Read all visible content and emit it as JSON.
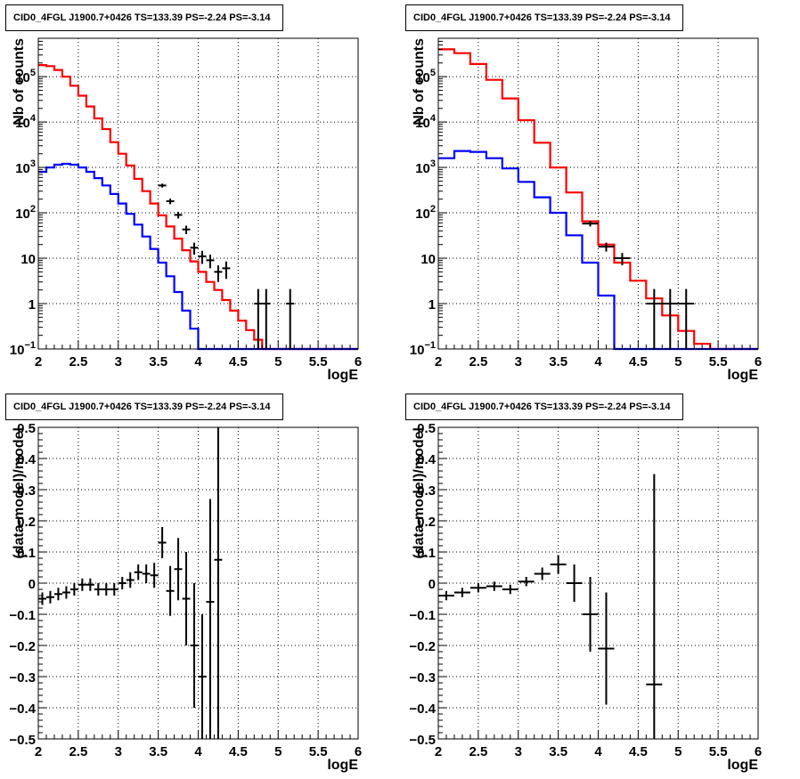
{
  "chart_data": [
    {
      "type": "line",
      "title": "CID0_4FGL J1900.7+0426 TS=133.39 PS=-2.24 PS=-3.14",
      "xlabel": "logE",
      "ylabel": "Nb of counts",
      "xlim": [
        2,
        6
      ],
      "ylim": [
        0.1,
        700000
      ],
      "yscale": "log",
      "grid": true,
      "xticks": [
        "2",
        "2.5",
        "3",
        "3.5",
        "4",
        "4.5",
        "5",
        "5.5",
        "6"
      ],
      "yticks": [
        {
          "v": 0.1,
          "label": "10",
          "sup": "−1"
        },
        {
          "v": 1,
          "label": "1",
          "sup": ""
        },
        {
          "v": 10,
          "label": "10",
          "sup": ""
        },
        {
          "v": 100,
          "label": "10",
          "sup": "2"
        },
        {
          "v": 1000,
          "label": "10",
          "sup": "3"
        },
        {
          "v": 10000,
          "label": "10",
          "sup": "4"
        },
        {
          "v": 100000,
          "label": "10",
          "sup": "5"
        }
      ],
      "series": [
        {
          "color": "#ff0000",
          "steps": {
            "edges": [
              2.0,
              2.1,
              2.2,
              2.3,
              2.4,
              2.5,
              2.6,
              2.7,
              2.8,
              2.9,
              3.0,
              3.1,
              3.2,
              3.3,
              3.4,
              3.5,
              3.6,
              3.7,
              3.8,
              3.9,
              4.0,
              4.1,
              4.2,
              4.3,
              4.4,
              4.5,
              4.6,
              4.7,
              4.8,
              4.9,
              5.0,
              5.1,
              5.2,
              5.3,
              5.4,
              5.5,
              5.6,
              5.7,
              5.8,
              5.9,
              6.0
            ],
            "values": [
              180000,
              170000,
              140000,
              100000,
              63000,
              38000,
              22000,
              12000,
              7000,
              3600,
              2000,
              1100,
              560,
              300,
              160,
              88,
              50,
              27,
              15,
              8.5,
              5,
              3,
              2,
              1.2,
              0.7,
              0.42,
              0.26,
              0.16,
              0.1,
              0.1,
              0.1,
              0.1,
              0.1,
              0.1,
              0.1,
              0.1,
              0.1,
              0.1,
              0.1,
              0.1
            ]
          }
        },
        {
          "color": "#0000ff",
          "steps": {
            "edges": [
              2.0,
              2.1,
              2.2,
              2.3,
              2.4,
              2.5,
              2.6,
              2.7,
              2.8,
              2.9,
              3.0,
              3.1,
              3.2,
              3.3,
              3.4,
              3.5,
              3.6,
              3.7,
              3.8,
              3.9,
              4.0,
              4.1,
              4.2,
              4.3,
              4.4,
              4.5,
              4.6,
              4.7,
              4.8,
              4.9,
              5.0,
              5.1,
              5.2,
              5.3,
              5.4,
              5.5,
              5.6,
              5.7,
              5.8,
              5.9,
              6.0
            ],
            "values": [
              800,
              1000,
              1150,
              1200,
              1150,
              1000,
              800,
              580,
              400,
              260,
              160,
              95,
              55,
              30,
              16,
              8,
              4,
              1.8,
              0.7,
              0.28,
              0.1,
              0.1,
              0.1,
              0.1,
              0.1,
              0.1,
              0.1,
              0.1,
              0.1,
              0.1,
              0.1,
              0.1,
              0.1,
              0.1,
              0.1,
              0.1,
              0.1,
              0.1,
              0.1,
              0.1
            ]
          }
        }
      ],
      "points": [
        {
          "x": 3.55,
          "y": 400,
          "xerr": 0.05,
          "ylo": 360,
          "yhi": 440
        },
        {
          "x": 3.65,
          "y": 180,
          "xerr": 0.05,
          "ylo": 155,
          "yhi": 205
        },
        {
          "x": 3.75,
          "y": 90,
          "xerr": 0.05,
          "ylo": 75,
          "yhi": 105
        },
        {
          "x": 3.85,
          "y": 43,
          "xerr": 0.05,
          "ylo": 34,
          "yhi": 52
        },
        {
          "x": 3.95,
          "y": 17,
          "xerr": 0.05,
          "ylo": 12,
          "yhi": 22
        },
        {
          "x": 4.05,
          "y": 11,
          "xerr": 0.05,
          "ylo": 7.5,
          "yhi": 14.5
        },
        {
          "x": 4.15,
          "y": 9,
          "xerr": 0.05,
          "ylo": 6,
          "yhi": 12
        },
        {
          "x": 4.25,
          "y": 5,
          "xerr": 0.05,
          "ylo": 3,
          "yhi": 7
        },
        {
          "x": 4.35,
          "y": 6,
          "xerr": 0.05,
          "ylo": 3.5,
          "yhi": 8.5
        },
        {
          "x": 4.75,
          "y": 1,
          "xerr": 0.05,
          "ylo": 0.1,
          "yhi": 2.1
        },
        {
          "x": 4.85,
          "y": 1,
          "xerr": 0.05,
          "ylo": 0.1,
          "yhi": 2.1
        },
        {
          "x": 5.15,
          "y": 1,
          "xerr": 0.05,
          "ylo": 0.1,
          "yhi": 2.1
        }
      ]
    },
    {
      "type": "line",
      "title": "CID0_4FGL J1900.7+0426 TS=133.39 PS=-2.24 PS=-3.14",
      "xlabel": "logE",
      "ylabel": "Nb of counts",
      "xlim": [
        2,
        6
      ],
      "ylim": [
        0.1,
        700000
      ],
      "yscale": "log",
      "grid": true,
      "xticks": [
        "2",
        "2.5",
        "3",
        "3.5",
        "4",
        "4.5",
        "5",
        "5.5",
        "6"
      ],
      "yticks": [
        {
          "v": 0.1,
          "label": "10",
          "sup": "−1"
        },
        {
          "v": 1,
          "label": "1",
          "sup": ""
        },
        {
          "v": 10,
          "label": "10",
          "sup": ""
        },
        {
          "v": 100,
          "label": "10",
          "sup": "2"
        },
        {
          "v": 1000,
          "label": "10",
          "sup": "3"
        },
        {
          "v": 10000,
          "label": "10",
          "sup": "4"
        },
        {
          "v": 100000,
          "label": "10",
          "sup": "5"
        }
      ],
      "series": [
        {
          "color": "#ff0000",
          "steps": {
            "edges": [
              2.0,
              2.2,
              2.4,
              2.6,
              2.8,
              3.0,
              3.2,
              3.4,
              3.6,
              3.8,
              4.0,
              4.2,
              4.4,
              4.6,
              4.8,
              5.0,
              5.2,
              5.4,
              5.6,
              5.8,
              6.0
            ],
            "values": [
              400000,
              330000,
              190000,
              85000,
              33000,
              11000,
              3500,
              1000,
              280,
              65,
              20,
              8,
              3.2,
              1.3,
              0.55,
              0.25,
              0.13,
              0.1,
              0.1,
              0.1
            ]
          }
        },
        {
          "color": "#0000ff",
          "steps": {
            "edges": [
              2.0,
              2.2,
              2.4,
              2.6,
              2.8,
              3.0,
              3.2,
              3.4,
              3.6,
              3.8,
              4.0,
              4.2,
              4.4,
              4.6,
              4.8,
              5.0,
              5.2,
              5.4,
              5.6,
              5.8,
              6.0
            ],
            "values": [
              1600,
              2300,
              2200,
              1600,
              950,
              480,
              220,
              100,
              32,
              8,
              1.5,
              0.1,
              0.1,
              0.1,
              0.1,
              0.1,
              0.1,
              0.1,
              0.1,
              0.1
            ]
          }
        }
      ],
      "points": [
        {
          "x": 3.9,
          "y": 58,
          "xerr": 0.1,
          "ylo": 50,
          "yhi": 66
        },
        {
          "x": 4.1,
          "y": 18,
          "xerr": 0.1,
          "ylo": 14,
          "yhi": 22
        },
        {
          "x": 4.3,
          "y": 10,
          "xerr": 0.1,
          "ylo": 7,
          "yhi": 13
        },
        {
          "x": 4.7,
          "y": 1,
          "xerr": 0.1,
          "ylo": 0.1,
          "yhi": 2.1
        },
        {
          "x": 4.9,
          "y": 1,
          "xerr": 0.1,
          "ylo": 0.1,
          "yhi": 2.1
        },
        {
          "x": 5.1,
          "y": 1,
          "xerr": 0.1,
          "ylo": 0.1,
          "yhi": 2.1
        }
      ]
    },
    {
      "type": "scatter",
      "title": "CID0_4FGL J1900.7+0426 TS=133.39 PS=-2.24 PS=-3.14",
      "xlabel": "logE",
      "ylabel": "(data-model)/model",
      "xlim": [
        2,
        6
      ],
      "ylim": [
        -0.5,
        0.5
      ],
      "yscale": "linear",
      "grid": true,
      "xticks": [
        "2",
        "2.5",
        "3",
        "3.5",
        "4",
        "4.5",
        "5",
        "5.5",
        "6"
      ],
      "yticks": [
        {
          "v": -0.5,
          "label": "−0.5"
        },
        {
          "v": -0.4,
          "label": "−0.4"
        },
        {
          "v": -0.3,
          "label": "−0.3"
        },
        {
          "v": -0.2,
          "label": "−0.2"
        },
        {
          "v": -0.1,
          "label": "−0.1"
        },
        {
          "v": 0,
          "label": "0"
        },
        {
          "v": 0.1,
          "label": "0.1"
        },
        {
          "v": 0.2,
          "label": "0.2"
        },
        {
          "v": 0.3,
          "label": "0.3"
        },
        {
          "v": 0.4,
          "label": "0.4"
        },
        {
          "v": 0.5,
          "label": "0.5"
        }
      ],
      "points": [
        {
          "x": 2.05,
          "y": -0.05,
          "xerr": 0.05,
          "ylo": -0.07,
          "yhi": -0.03
        },
        {
          "x": 2.15,
          "y": -0.045,
          "xerr": 0.05,
          "ylo": -0.065,
          "yhi": -0.025
        },
        {
          "x": 2.25,
          "y": -0.035,
          "xerr": 0.05,
          "ylo": -0.055,
          "yhi": -0.015
        },
        {
          "x": 2.35,
          "y": -0.03,
          "xerr": 0.05,
          "ylo": -0.05,
          "yhi": -0.01
        },
        {
          "x": 2.45,
          "y": -0.02,
          "xerr": 0.05,
          "ylo": -0.04,
          "yhi": 0.0
        },
        {
          "x": 2.55,
          "y": -0.005,
          "xerr": 0.05,
          "ylo": -0.025,
          "yhi": 0.015
        },
        {
          "x": 2.65,
          "y": -0.005,
          "xerr": 0.05,
          "ylo": -0.025,
          "yhi": 0.015
        },
        {
          "x": 2.75,
          "y": -0.02,
          "xerr": 0.05,
          "ylo": -0.04,
          "yhi": 0.0
        },
        {
          "x": 2.85,
          "y": -0.02,
          "xerr": 0.05,
          "ylo": -0.04,
          "yhi": 0.0
        },
        {
          "x": 2.95,
          "y": -0.02,
          "xerr": 0.05,
          "ylo": -0.04,
          "yhi": 0.0
        },
        {
          "x": 3.05,
          "y": 0.0,
          "xerr": 0.05,
          "ylo": -0.02,
          "yhi": 0.02
        },
        {
          "x": 3.15,
          "y": 0.01,
          "xerr": 0.05,
          "ylo": -0.015,
          "yhi": 0.035
        },
        {
          "x": 3.25,
          "y": 0.035,
          "xerr": 0.05,
          "ylo": 0.01,
          "yhi": 0.06
        },
        {
          "x": 3.35,
          "y": 0.03,
          "xerr": 0.05,
          "ylo": 0.0,
          "yhi": 0.06
        },
        {
          "x": 3.45,
          "y": 0.025,
          "xerr": 0.05,
          "ylo": -0.015,
          "yhi": 0.065
        },
        {
          "x": 3.55,
          "y": 0.13,
          "xerr": 0.05,
          "ylo": 0.08,
          "yhi": 0.18
        },
        {
          "x": 3.65,
          "y": -0.025,
          "xerr": 0.05,
          "ylo": -0.105,
          "yhi": 0.055
        },
        {
          "x": 3.75,
          "y": 0.045,
          "xerr": 0.05,
          "ylo": -0.055,
          "yhi": 0.145
        },
        {
          "x": 3.85,
          "y": -0.05,
          "xerr": 0.05,
          "ylo": -0.2,
          "yhi": 0.1
        },
        {
          "x": 3.95,
          "y": -0.2,
          "xerr": 0.05,
          "ylo": -0.4,
          "yhi": 0.0
        },
        {
          "x": 4.05,
          "y": -0.3,
          "xerr": 0.05,
          "ylo": -0.5,
          "yhi": -0.1
        },
        {
          "x": 4.15,
          "y": -0.06,
          "xerr": 0.05,
          "ylo": -0.5,
          "yhi": 0.27
        },
        {
          "x": 4.25,
          "y": 0.075,
          "xerr": 0.05,
          "ylo": -0.5,
          "yhi": 0.5
        }
      ]
    },
    {
      "type": "scatter",
      "title": "CID0_4FGL J1900.7+0426 TS=133.39 PS=-2.24 PS=-3.14",
      "xlabel": "logE",
      "ylabel": "(data-model)/model",
      "xlim": [
        2,
        6
      ],
      "ylim": [
        -0.5,
        0.5
      ],
      "yscale": "linear",
      "grid": true,
      "xticks": [
        "2",
        "2.5",
        "3",
        "3.5",
        "4",
        "4.5",
        "5",
        "5.5",
        "6"
      ],
      "yticks": [
        {
          "v": -0.5,
          "label": "−0.5"
        },
        {
          "v": -0.4,
          "label": "−0.4"
        },
        {
          "v": -0.3,
          "label": "−0.3"
        },
        {
          "v": -0.2,
          "label": "−0.2"
        },
        {
          "v": -0.1,
          "label": "−0.1"
        },
        {
          "v": 0,
          "label": "0"
        },
        {
          "v": 0.1,
          "label": "0.1"
        },
        {
          "v": 0.2,
          "label": "0.2"
        },
        {
          "v": 0.3,
          "label": "0.3"
        },
        {
          "v": 0.4,
          "label": "0.4"
        },
        {
          "v": 0.5,
          "label": "0.5"
        }
      ],
      "points": [
        {
          "x": 2.1,
          "y": -0.04,
          "xerr": 0.1,
          "ylo": -0.055,
          "yhi": -0.025
        },
        {
          "x": 2.3,
          "y": -0.03,
          "xerr": 0.1,
          "ylo": -0.045,
          "yhi": -0.015
        },
        {
          "x": 2.5,
          "y": -0.015,
          "xerr": 0.1,
          "ylo": -0.03,
          "yhi": 0.0
        },
        {
          "x": 2.7,
          "y": -0.01,
          "xerr": 0.1,
          "ylo": -0.025,
          "yhi": 0.005
        },
        {
          "x": 2.9,
          "y": -0.02,
          "xerr": 0.1,
          "ylo": -0.035,
          "yhi": -0.005
        },
        {
          "x": 3.1,
          "y": 0.005,
          "xerr": 0.1,
          "ylo": -0.01,
          "yhi": 0.02
        },
        {
          "x": 3.3,
          "y": 0.03,
          "xerr": 0.1,
          "ylo": 0.01,
          "yhi": 0.05
        },
        {
          "x": 3.5,
          "y": 0.06,
          "xerr": 0.1,
          "ylo": 0.03,
          "yhi": 0.09
        },
        {
          "x": 3.7,
          "y": 0.0,
          "xerr": 0.1,
          "ylo": -0.06,
          "yhi": 0.06
        },
        {
          "x": 3.9,
          "y": -0.1,
          "xerr": 0.1,
          "ylo": -0.22,
          "yhi": 0.02
        },
        {
          "x": 4.1,
          "y": -0.21,
          "xerr": 0.1,
          "ylo": -0.39,
          "yhi": -0.03
        },
        {
          "x": 4.7,
          "y": -0.325,
          "xerr": 0.1,
          "ylo": -0.5,
          "yhi": 0.35
        }
      ]
    }
  ]
}
